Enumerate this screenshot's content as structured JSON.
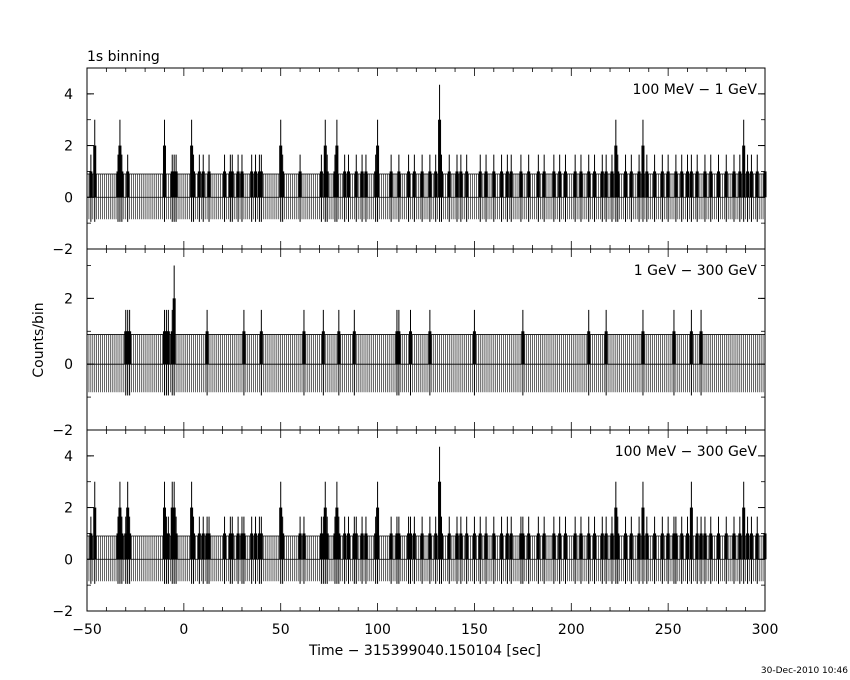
{
  "title": "1s binning",
  "timestamp": "30-Dec-2010 10:46",
  "chart_data": {
    "type": "bar",
    "xlabel": "Time − 315399040.150104 [sec]",
    "ylabel": "Counts/bin",
    "xlim": [
      -50,
      300
    ],
    "x_ticks": [
      -50,
      0,
      50,
      100,
      150,
      200,
      250,
      300
    ],
    "panels": [
      {
        "label": "100 MeV − 1 GeV",
        "ylim": [
          -2,
          5
        ],
        "y_ticks": [
          -2,
          0,
          2,
          4
        ],
        "series": [
          {
            "x": [
              -48,
              -46,
              -34,
              -33,
              -32,
              -29,
              -10,
              -6,
              -5,
              -4,
              4,
              5,
              8,
              10,
              13,
              21,
              24,
              25,
              28,
              30,
              35,
              37,
              39,
              40,
              50,
              51,
              60,
              71,
              73,
              74,
              78,
              79,
              83,
              85,
              89,
              92,
              94,
              99,
              100,
              107,
              111,
              116,
              119,
              123,
              127,
              130,
              132,
              133,
              137,
              141,
              143,
              146,
              153,
              156,
              160,
              164,
              167,
              169,
              174,
              178,
              183,
              186,
              191,
              194,
              197,
              202,
              205,
              209,
              212,
              216,
              218,
              221,
              223,
              224,
              228,
              231,
              235,
              237,
              239,
              243,
              247,
              250,
              254,
              257,
              260,
              262,
              265,
              269,
              272,
              276,
              280,
              284,
              287,
              289,
              291,
              293,
              296,
              300
            ],
            "values": [
              1,
              2,
              1,
              2,
              1,
              1,
              2,
              1,
              1,
              1,
              2,
              1,
              1,
              1,
              1,
              1,
              1,
              1,
              1,
              1,
              1,
              1,
              1,
              1,
              2,
              1,
              1,
              1,
              2,
              1,
              1,
              2,
              1,
              1,
              1,
              1,
              1,
              1,
              2,
              1,
              1,
              1,
              1,
              1,
              1,
              1,
              3,
              1,
              1,
              1,
              1,
              1,
              1,
              1,
              1,
              1,
              1,
              1,
              1,
              1,
              1,
              1,
              1,
              1,
              1,
              1,
              1,
              1,
              1,
              1,
              1,
              1,
              2,
              1,
              1,
              1,
              1,
              2,
              1,
              1,
              1,
              1,
              1,
              1,
              1,
              1,
              1,
              1,
              1,
              1,
              1,
              1,
              1,
              2,
              1,
              1,
              1,
              1
            ]
          }
        ]
      },
      {
        "label": "1 GeV − 300 GeV",
        "ylim": [
          -2,
          3.5
        ],
        "y_ticks": [
          -2,
          0,
          2
        ],
        "series": [
          {
            "x": [
              -30,
              -29,
              -28,
              -10,
              -9,
              -8,
              -6,
              -5,
              12,
              31,
              40,
              62,
              72,
              80,
              88,
              110,
              111,
              117,
              127,
              150,
              175,
              209,
              218,
              237,
              253,
              262,
              267
            ],
            "values": [
              1,
              1,
              1,
              1,
              1,
              1,
              1,
              2,
              1,
              1,
              1,
              1,
              1,
              1,
              1,
              1,
              1,
              1,
              1,
              1,
              1,
              1,
              1,
              1,
              1,
              1,
              1
            ]
          }
        ]
      },
      {
        "label": "100 MeV − 300 GeV",
        "ylim": [
          -2,
          5
        ],
        "y_ticks": [
          -2,
          0,
          2,
          4
        ],
        "series": [
          {
            "x": [
              -48,
              -46,
              -34,
              -33,
              -32,
              -30,
              -29,
              -28,
              -10,
              -9,
              -8,
              -6,
              -5,
              -4,
              4,
              5,
              8,
              10,
              12,
              13,
              21,
              24,
              25,
              28,
              30,
              31,
              35,
              37,
              39,
              40,
              50,
              51,
              60,
              62,
              71,
              72,
              73,
              74,
              78,
              79,
              80,
              83,
              85,
              88,
              89,
              92,
              94,
              99,
              100,
              107,
              110,
              111,
              116,
              117,
              119,
              123,
              127,
              130,
              132,
              133,
              137,
              141,
              143,
              146,
              150,
              153,
              156,
              160,
              164,
              167,
              169,
              174,
              175,
              178,
              183,
              186,
              191,
              194,
              197,
              202,
              205,
              209,
              212,
              216,
              218,
              221,
              223,
              224,
              228,
              231,
              235,
              237,
              239,
              243,
              247,
              250,
              253,
              254,
              257,
              260,
              262,
              265,
              267,
              269,
              272,
              276,
              280,
              284,
              287,
              289,
              291,
              293,
              296,
              300
            ],
            "values": [
              1,
              2,
              1,
              2,
              1,
              1,
              2,
              1,
              2,
              1,
              1,
              2,
              2,
              1,
              2,
              1,
              1,
              1,
              1,
              1,
              1,
              1,
              1,
              1,
              1,
              1,
              1,
              1,
              1,
              1,
              2,
              1,
              1,
              1,
              1,
              1,
              2,
              1,
              1,
              2,
              1,
              1,
              1,
              1,
              1,
              1,
              1,
              1,
              2,
              1,
              1,
              1,
              1,
              1,
              1,
              1,
              1,
              1,
              3,
              1,
              1,
              1,
              1,
              1,
              1,
              1,
              1,
              1,
              1,
              1,
              1,
              1,
              1,
              1,
              1,
              1,
              1,
              1,
              1,
              1,
              1,
              1,
              1,
              1,
              1,
              1,
              2,
              1,
              1,
              1,
              1,
              2,
              1,
              1,
              1,
              1,
              1,
              1,
              1,
              1,
              2,
              1,
              1,
              1,
              1,
              1,
              1,
              1,
              1,
              2,
              1,
              1,
              1,
              1
            ]
          }
        ]
      }
    ]
  }
}
